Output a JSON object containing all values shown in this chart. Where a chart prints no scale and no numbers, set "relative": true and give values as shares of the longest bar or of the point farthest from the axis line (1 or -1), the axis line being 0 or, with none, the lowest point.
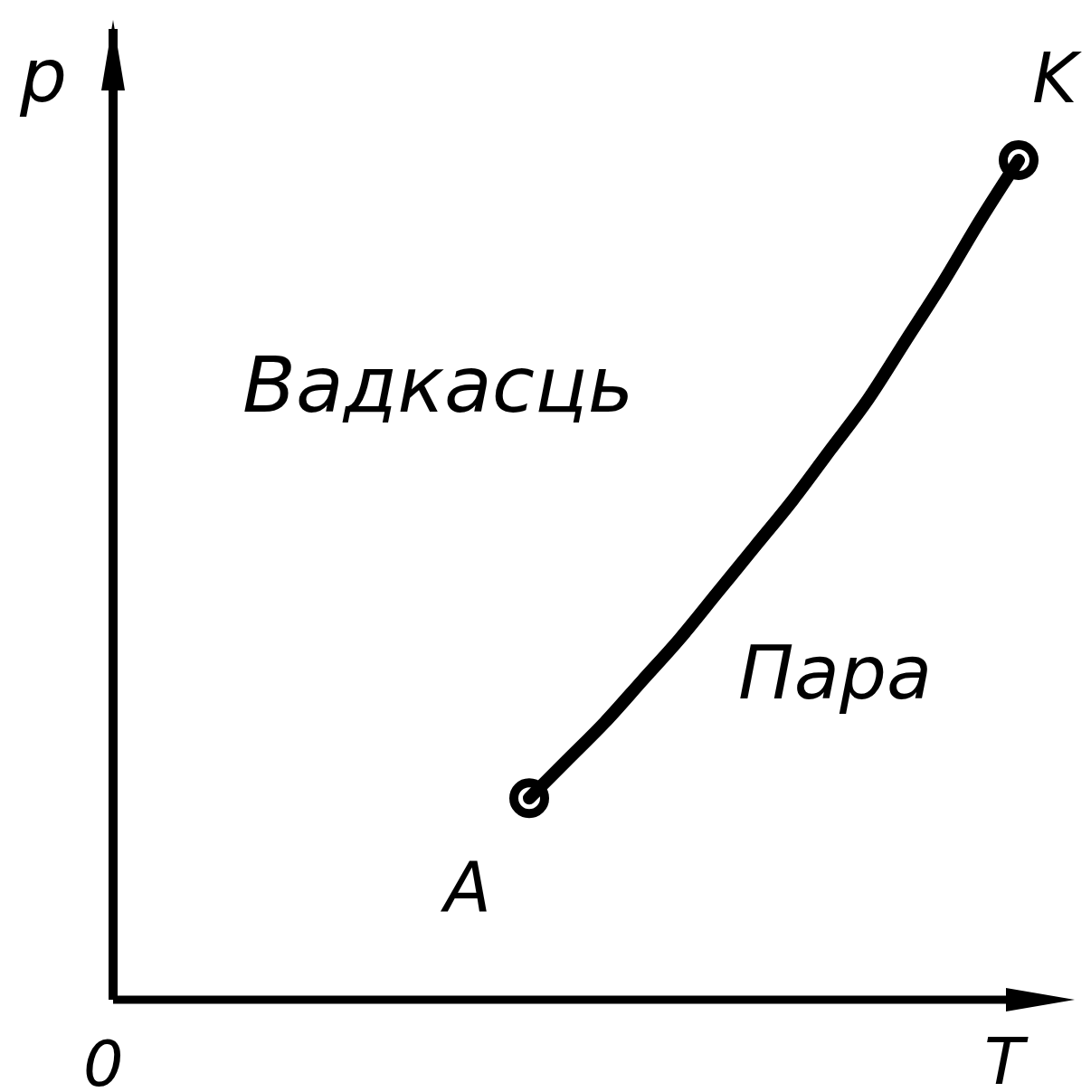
{
  "chart_data": {
    "type": "line",
    "relative": true,
    "xlabel": "T",
    "line_style": "solid",
    "categories": [
      null,
      null,
      null,
      null,
      null,
      null,
      null,
      null,
      null,
      null,
      null,
      null,
      null,
      null
    ],
    "series": [
      {
        "color": "#000000",
        "values": [
          0.24,
          0.285,
          0.33,
          0.38,
          0.43,
          0.485,
          0.54,
          0.595,
          0.655,
          0.715,
          0.785,
          0.855,
          0.93,
          1
        ]
      }
    ],
    "annotations": [
      "p",
      "Вадкасць",
      "Пара",
      "0",
      "A",
      "K"
    ]
  }
}
